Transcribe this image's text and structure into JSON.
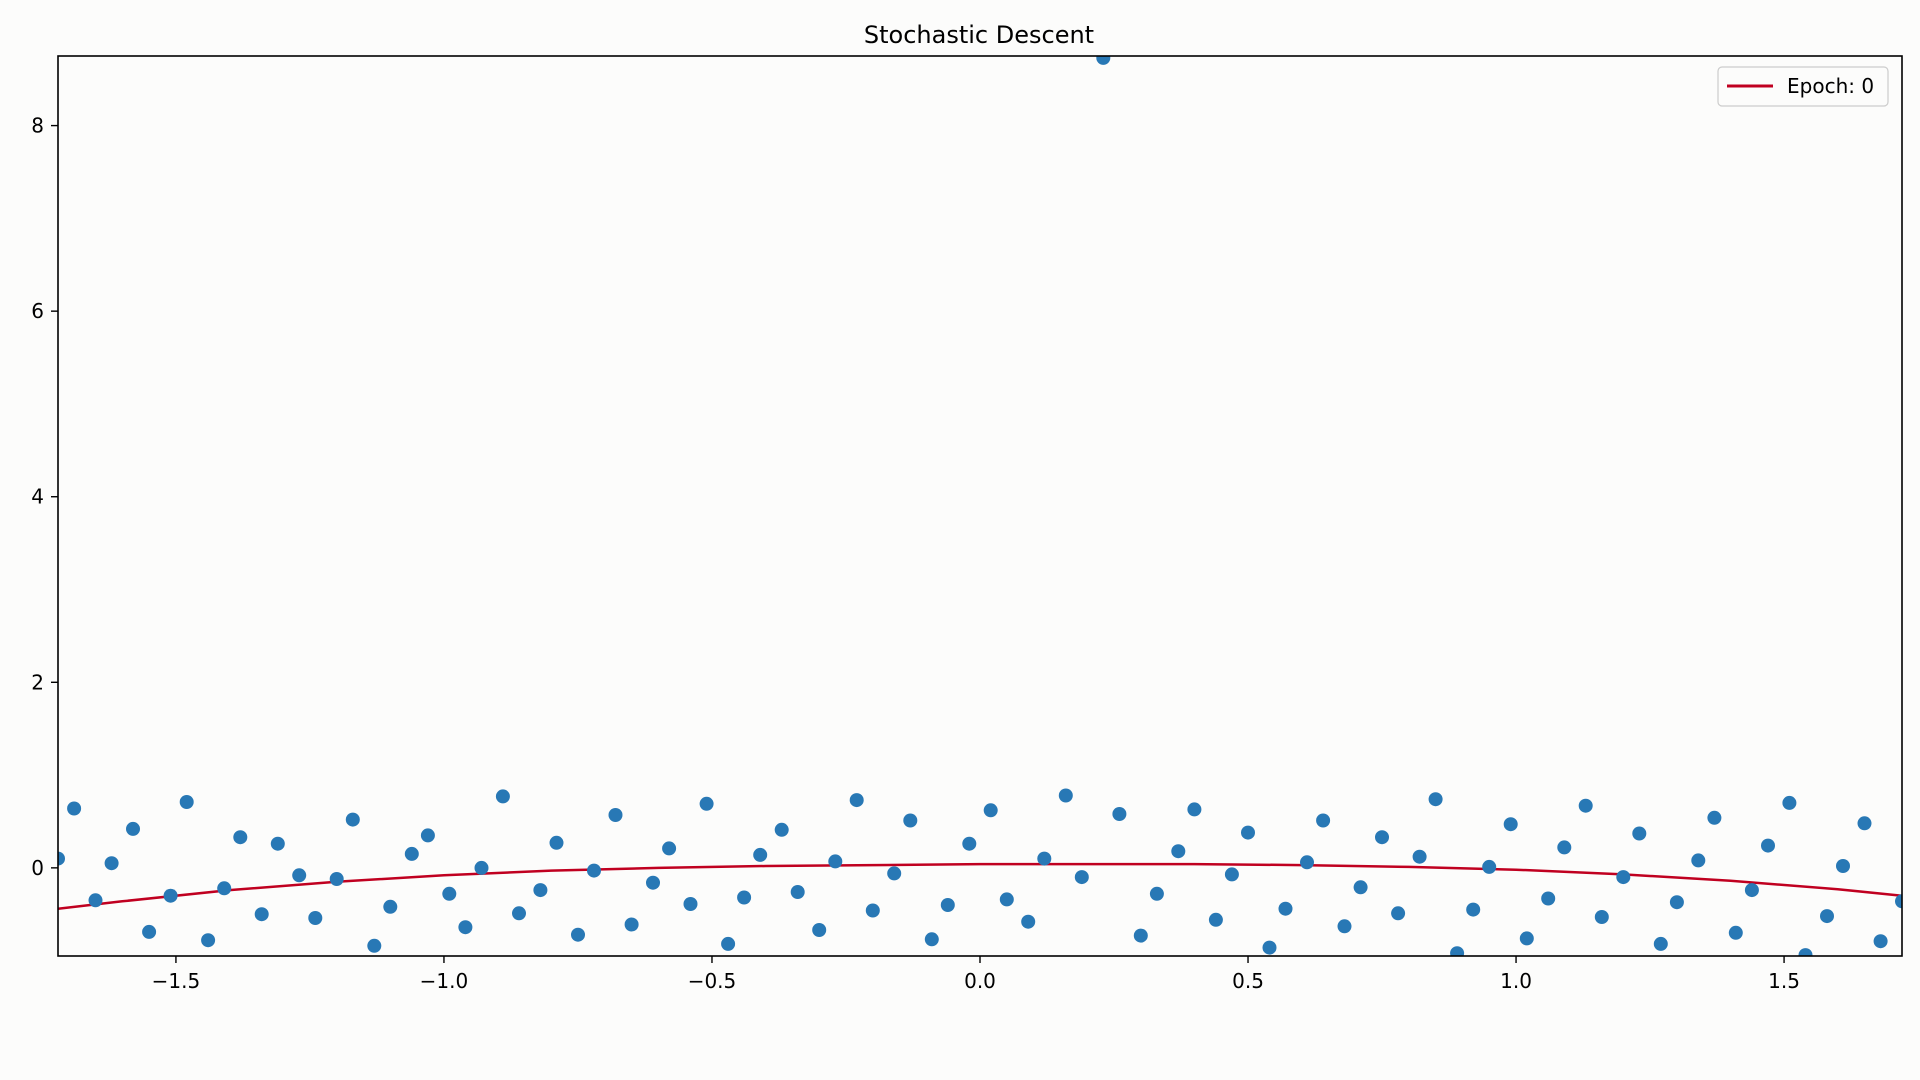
{
  "chart_data": {
    "type": "scatter",
    "title": "Stochastic Descent",
    "xlabel": "",
    "ylabel": "",
    "xlim": [
      -1.72,
      1.72
    ],
    "ylim": [
      -0.95,
      8.75
    ],
    "x_ticks": [
      -1.5,
      -1.0,
      -0.5,
      0.0,
      0.5,
      1.0,
      1.5
    ],
    "x_tick_labels": [
      "−1.5",
      "−1.0",
      "−0.5",
      "0.0",
      "0.5",
      "1.0",
      "1.5"
    ],
    "y_ticks": [
      0,
      2,
      4,
      6,
      8
    ],
    "y_tick_labels": [
      "0",
      "2",
      "4",
      "6",
      "8"
    ],
    "grid": false,
    "legend_position": "top-right",
    "colors": {
      "points": "#2878b5",
      "fit_line": "#c00020",
      "background": "#fcfcfb",
      "axes": "#000000"
    },
    "series": [
      {
        "kind": "scatter",
        "x": [
          -1.72,
          -1.69,
          -1.65,
          -1.62,
          -1.58,
          -1.55,
          -1.51,
          -1.48,
          -1.44,
          -1.41,
          -1.38,
          -1.34,
          -1.31,
          -1.27,
          -1.24,
          -1.2,
          -1.17,
          -1.13,
          -1.1,
          -1.06,
          -1.03,
          -0.99,
          -0.96,
          -0.93,
          -0.89,
          -0.86,
          -0.82,
          -0.79,
          -0.75,
          -0.72,
          -0.68,
          -0.65,
          -0.61,
          -0.58,
          -0.54,
          -0.51,
          -0.47,
          -0.44,
          -0.41,
          -0.37,
          -0.34,
          -0.3,
          -0.27,
          -0.23,
          -0.2,
          -0.16,
          -0.13,
          -0.09,
          -0.06,
          -0.02,
          0.02,
          0.05,
          0.09,
          0.12,
          0.16,
          0.19,
          0.23,
          0.26,
          0.3,
          0.33,
          0.37,
          0.4,
          0.44,
          0.47,
          0.5,
          0.54,
          0.57,
          0.61,
          0.64,
          0.68,
          0.71,
          0.75,
          0.78,
          0.82,
          0.85,
          0.89,
          0.92,
          0.95,
          0.99,
          1.02,
          1.06,
          1.09,
          1.13,
          1.16,
          1.2,
          1.23,
          1.27,
          1.3,
          1.34,
          1.37,
          1.41,
          1.44,
          1.47,
          1.51,
          1.54,
          1.58,
          1.61,
          1.65,
          1.68,
          1.72
        ],
        "y": [
          0.1,
          0.64,
          -0.35,
          0.05,
          0.42,
          -0.69,
          -0.3,
          0.71,
          -0.78,
          -0.22,
          0.33,
          -0.5,
          0.26,
          -0.08,
          -0.54,
          -0.12,
          0.52,
          -0.84,
          -0.42,
          0.15,
          0.35,
          -0.28,
          -0.64,
          0.0,
          0.77,
          -0.49,
          -0.24,
          0.27,
          -0.72,
          -0.03,
          0.57,
          -0.61,
          -0.16,
          0.21,
          -0.39,
          0.69,
          -0.82,
          -0.32,
          0.14,
          0.41,
          -0.26,
          -0.67,
          0.07,
          0.73,
          -0.46,
          -0.06,
          0.51,
          -0.77,
          -0.4,
          0.26,
          0.62,
          -0.34,
          -0.58,
          0.1,
          0.78,
          -0.1,
          8.73,
          0.58,
          -0.73,
          -0.28,
          0.18,
          0.63,
          -0.56,
          -0.07,
          0.38,
          -0.86,
          -0.44,
          0.06,
          0.51,
          -0.63,
          -0.21,
          0.33,
          -0.49,
          0.12,
          0.74,
          -0.92,
          -0.45,
          0.01,
          0.47,
          -0.76,
          -0.33,
          0.22,
          0.67,
          -0.53,
          -0.1,
          0.37,
          -0.82,
          -0.37,
          0.08,
          0.54,
          -0.7,
          -0.24,
          0.24,
          0.7,
          -0.94,
          -0.52,
          0.02,
          0.48,
          -0.79,
          -0.36
        ]
      },
      {
        "kind": "line",
        "name": "Epoch: 0",
        "x": [
          -1.72,
          -1.6,
          -1.4,
          -1.2,
          -1.0,
          -0.8,
          -0.6,
          -0.4,
          -0.2,
          0.0,
          0.2,
          0.4,
          0.6,
          0.8,
          1.0,
          1.2,
          1.4,
          1.6,
          1.72
        ],
        "y": [
          -0.44,
          -0.36,
          -0.24,
          -0.15,
          -0.08,
          -0.03,
          0.0,
          0.02,
          0.03,
          0.04,
          0.04,
          0.04,
          0.03,
          0.01,
          -0.02,
          -0.07,
          -0.14,
          -0.23,
          -0.3
        ]
      }
    ]
  }
}
